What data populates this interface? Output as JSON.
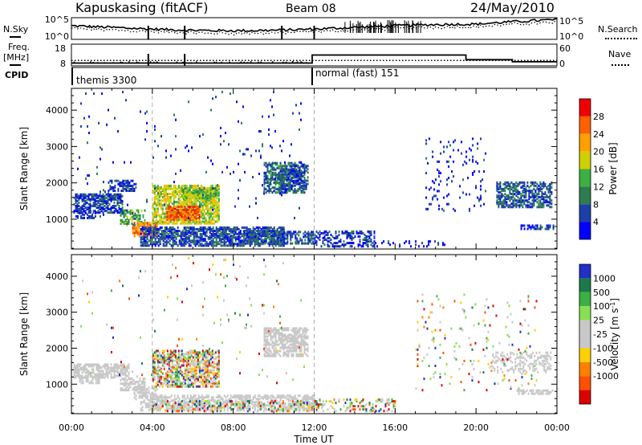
{
  "header": {
    "station": "Kapuskasing (fitACF)",
    "beam": "Beam 08",
    "date": "24/May/2010"
  },
  "side_labels": {
    "nsky": "N.Sky",
    "nsearch": "N.Search",
    "freq_line1": "Freq.",
    "freq_line2": "[MHz]",
    "nave": "Nave",
    "cpid": "CPID"
  },
  "noise_panel": {
    "left_ticks": [
      "10^5",
      "10^0"
    ],
    "right_ticks": [
      "10^5",
      "10^0"
    ]
  },
  "freq_panel": {
    "left_ticks": [
      "18",
      "8"
    ],
    "right_ticks": [
      "60",
      "0"
    ],
    "nave_levels": [
      {
        "start": 0,
        "end": 11.9,
        "value": 4
      },
      {
        "start": 11.9,
        "end": 19.5,
        "value": 30
      },
      {
        "start": 19.5,
        "end": 21.8,
        "value": 15
      },
      {
        "start": 21.8,
        "end": 24,
        "value": 8
      }
    ],
    "freq_mhz": 10.5
  },
  "cpid_panel": {
    "segments": [
      {
        "label": "themis 3300",
        "start_hour": 0
      },
      {
        "label": "normal (fast) 151",
        "start_hour": 11.9
      }
    ]
  },
  "axes": {
    "x_ticks": [
      "00:00",
      "04:00",
      "08:00",
      "12:00",
      "16:00",
      "20:00",
      "00:00"
    ],
    "x_label": "Time UT",
    "y_label": "Slant Range [km]",
    "y_ticks": [
      "1000",
      "2000",
      "3000",
      "4000"
    ]
  },
  "chart_data": [
    {
      "type": "heatmap",
      "title": "",
      "xlabel": "",
      "ylabel": "Slant Range [km]",
      "xlim_hours": [
        0,
        24
      ],
      "ylim_km": [
        180,
        4600
      ],
      "colorbar_label": "Power [dB]",
      "colorbar_ticks": [
        "28",
        "24",
        "20",
        "16",
        "12",
        "8",
        "4"
      ],
      "colorbar_values": [
        28,
        24,
        20,
        16,
        12,
        8,
        4
      ],
      "colorscale": [
        "#0000ff",
        "#1d3fa8",
        "#2e7d4f",
        "#3cb043",
        "#c9d400",
        "#ffb000",
        "#ff7000",
        "#e63000",
        "#cc0000"
      ],
      "regions": [
        {
          "t0": 0.1,
          "t1": 2.5,
          "r0": 1150,
          "r1": 1650,
          "value": 7,
          "density": 0.65
        },
        {
          "t0": 0.2,
          "t1": 1.3,
          "r0": 1000,
          "r1": 1200,
          "value": 6,
          "density": 0.4
        },
        {
          "t0": 1.8,
          "t1": 3.2,
          "r0": 1750,
          "r1": 2050,
          "value": 6,
          "density": 0.5
        },
        {
          "t0": 2.4,
          "t1": 3.6,
          "r0": 800,
          "r1": 1250,
          "value": 12,
          "density": 0.5
        },
        {
          "t0": 3.0,
          "t1": 4.2,
          "r0": 500,
          "r1": 900,
          "value": 22,
          "density": 0.75
        },
        {
          "t0": 4.0,
          "t1": 7.3,
          "r0": 850,
          "r1": 1900,
          "value": 16,
          "density": 0.7
        },
        {
          "t0": 4.7,
          "t1": 6.3,
          "r0": 950,
          "r1": 1350,
          "value": 24,
          "density": 0.75
        },
        {
          "t0": 5.5,
          "t1": 7.2,
          "r0": 1500,
          "r1": 1850,
          "value": 14,
          "density": 0.6
        },
        {
          "t0": 3.4,
          "t1": 10.5,
          "r0": 240,
          "r1": 750,
          "value": 7,
          "density": 0.7
        },
        {
          "t0": 8.5,
          "t1": 12.0,
          "r0": 300,
          "r1": 650,
          "value": 8,
          "density": 0.55
        },
        {
          "t0": 9.5,
          "t1": 11.5,
          "r0": 1700,
          "r1": 2550,
          "value": 9,
          "density": 0.6
        },
        {
          "t0": 10.3,
          "t1": 11.7,
          "r0": 1800,
          "r1": 2450,
          "value": 7,
          "density": 0.5
        },
        {
          "t0": 12.0,
          "t1": 15.0,
          "r0": 220,
          "r1": 650,
          "value": 6,
          "density": 0.4
        },
        {
          "t0": 15.0,
          "t1": 18.5,
          "r0": 220,
          "r1": 400,
          "value": 5,
          "density": 0.2
        },
        {
          "t0": 17.5,
          "t1": 20.5,
          "r0": 1200,
          "r1": 3200,
          "value": 5,
          "density": 0.06
        },
        {
          "t0": 21.0,
          "t1": 23.7,
          "r0": 1300,
          "r1": 2000,
          "value": 8,
          "density": 0.6
        },
        {
          "t0": 22.2,
          "t1": 23.8,
          "r0": 700,
          "r1": 820,
          "value": 6,
          "density": 0.6
        },
        {
          "t0": 0.2,
          "t1": 11.5,
          "r0": 1000,
          "r1": 4500,
          "value": 6,
          "density": 0.015
        }
      ]
    },
    {
      "type": "heatmap",
      "title": "",
      "xlabel": "Time UT",
      "ylabel": "Slant Range [km]",
      "xlim_hours": [
        0,
        24
      ],
      "ylim_km": [
        180,
        4600
      ],
      "colorbar_label": "Velocity [m s^-1]",
      "colorbar_ticks": [
        "1000",
        "500",
        "100",
        "25",
        "-25",
        "-100",
        "-500",
        "-1000"
      ],
      "colorscale": [
        "#2030c8",
        "#1c7a4a",
        "#3cb043",
        "#88e050",
        "#c8c8c8",
        "#c8c8c8",
        "#ffd000",
        "#ff8000",
        "#ff5000",
        "#dd0000"
      ],
      "regions": [
        {
          "t0": 0.1,
          "t1": 2.8,
          "r0": 1150,
          "r1": 1550,
          "class": "ground",
          "density": 0.7
        },
        {
          "t0": 0.3,
          "t1": 1.4,
          "r0": 1000,
          "r1": 1200,
          "class": "ground",
          "density": 0.5
        },
        {
          "t0": 2.4,
          "t1": 3.6,
          "r0": 800,
          "r1": 1150,
          "class": "ground",
          "density": 0.6
        },
        {
          "t0": 3.0,
          "t1": 4.2,
          "r0": 550,
          "r1": 900,
          "class": "ground",
          "density": 0.5
        },
        {
          "t0": 4.0,
          "t1": 7.3,
          "r0": 900,
          "r1": 1900,
          "class": "mixed",
          "density": 0.6
        },
        {
          "t0": 3.4,
          "t1": 12.0,
          "r0": 240,
          "r1": 650,
          "class": "ground",
          "density": 0.55
        },
        {
          "t0": 4.0,
          "t1": 12.5,
          "r0": 220,
          "r1": 500,
          "class": "mixed",
          "density": 0.25
        },
        {
          "t0": 9.5,
          "t1": 11.7,
          "r0": 1750,
          "r1": 2550,
          "class": "ground",
          "density": 0.6
        },
        {
          "t0": 12.0,
          "t1": 16.0,
          "r0": 220,
          "r1": 550,
          "class": "mixed",
          "density": 0.3
        },
        {
          "t0": 20.8,
          "t1": 23.7,
          "r0": 1300,
          "r1": 1850,
          "class": "ground",
          "density": 0.35
        },
        {
          "t0": 22.0,
          "t1": 23.8,
          "r0": 700,
          "r1": 820,
          "class": "ground",
          "density": 0.6
        },
        {
          "t0": 17.0,
          "t1": 23.0,
          "r0": 800,
          "r1": 3500,
          "class": "mixed",
          "density": 0.03
        },
        {
          "t0": 0.2,
          "t1": 11.5,
          "r0": 1000,
          "r1": 4500,
          "class": "mixed",
          "density": 0.012
        }
      ]
    }
  ]
}
